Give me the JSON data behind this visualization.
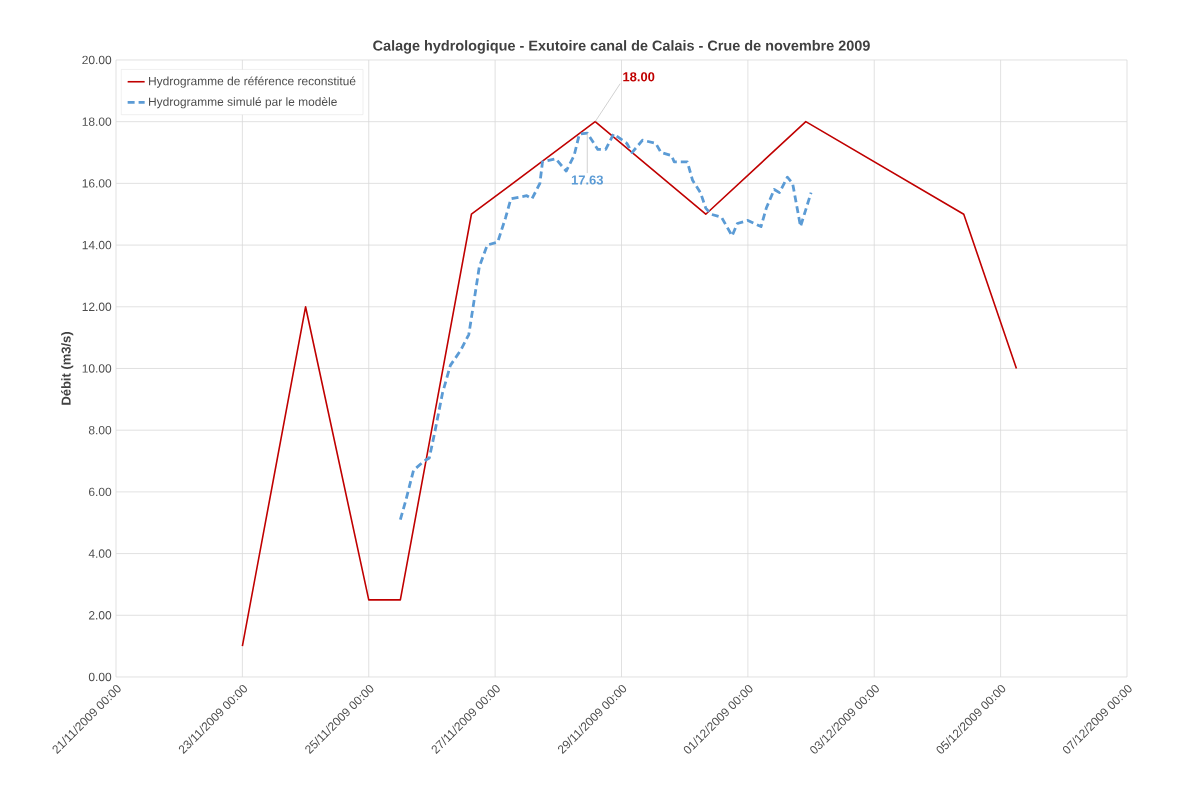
{
  "chart_data": {
    "type": "line",
    "title": "Calage hydrologique - Exutoire canal de Calais - Crue de novembre 2009",
    "ylabel": "Débit (m3/s)",
    "series": [
      {
        "name": "Hydrogramme de référence reconstitué",
        "color": "#c00000",
        "line_style": "solid",
        "x": [
          "2009-11-23T00:00",
          "2009-11-24T00:00",
          "2009-11-25T00:00",
          "2009-11-25T12:00",
          "2009-11-26T15:00",
          "2009-11-28T14:00",
          "2009-11-30T08:00",
          "2009-12-01T22:00",
          "2009-12-04T10:00",
          "2009-12-05T06:00"
        ],
        "values": [
          1.0,
          12.0,
          2.5,
          2.5,
          15.0,
          18.0,
          15.0,
          18.0,
          15.0,
          10.0
        ]
      },
      {
        "name": "Hydrogramme simulé par le modèle",
        "color": "#5b9bd5",
        "line_style": "dashed",
        "x": [
          "2009-11-25T12:00",
          "2009-11-25T14:00",
          "2009-11-25T17:00",
          "2009-11-25T21:00",
          "2009-11-25T23:00",
          "2009-11-26T01:00",
          "2009-11-26T04:00",
          "2009-11-26T07:00",
          "2009-11-26T11:00",
          "2009-11-26T14:00",
          "2009-11-26T16:00",
          "2009-11-26T18:00",
          "2009-11-26T21:00",
          "2009-11-27T01:00",
          "2009-11-27T04:00",
          "2009-11-27T06:00",
          "2009-11-27T12:00",
          "2009-11-27T14:00",
          "2009-11-27T17:00",
          "2009-11-27T18:00",
          "2009-11-27T23:00",
          "2009-11-28T03:00",
          "2009-11-28T06:00",
          "2009-11-28T08:00",
          "2009-11-28T11:00",
          "2009-11-28T15:00",
          "2009-11-28T18:00",
          "2009-11-28T21:00",
          "2009-11-29T02:00",
          "2009-11-29T04:00",
          "2009-11-29T08:00",
          "2009-11-29T13:00",
          "2009-11-29T15:00",
          "2009-11-29T19:00",
          "2009-11-29T20:00",
          "2009-11-30T01:00",
          "2009-11-30T03:00",
          "2009-11-30T06:00",
          "2009-11-30T08:00",
          "2009-11-30T10:00",
          "2009-11-30T14:00",
          "2009-11-30T18:00",
          "2009-11-30T20:00",
          "2009-12-01T00:00",
          "2009-12-01T05:00",
          "2009-12-01T07:00",
          "2009-12-01T10:00",
          "2009-12-01T12:00",
          "2009-12-01T15:00",
          "2009-12-01T17:00",
          "2009-12-01T20:00",
          "2009-12-02T00:00"
        ],
        "values": [
          5.1,
          5.7,
          6.7,
          7.0,
          7.1,
          7.9,
          9.2,
          10.1,
          10.6,
          11.1,
          12.2,
          13.3,
          14.0,
          14.1,
          14.9,
          15.5,
          15.6,
          15.5,
          16.0,
          16.7,
          16.8,
          16.4,
          16.9,
          17.6,
          17.63,
          17.1,
          17.1,
          17.6,
          17.3,
          17.0,
          17.4,
          17.3,
          17.0,
          16.9,
          16.7,
          16.7,
          16.1,
          15.7,
          15.2,
          15.0,
          14.9,
          14.3,
          14.7,
          14.8,
          14.6,
          15.2,
          15.8,
          15.7,
          16.2,
          16.0,
          14.6,
          15.7
        ]
      }
    ],
    "annotations": [
      {
        "text": "18.00",
        "x": "2009-11-28T14:00",
        "y": 18.0
      },
      {
        "text": "17.63",
        "x": "2009-11-28T11:00",
        "y": 17.63
      }
    ],
    "xlim": [
      "2009-11-21T00:00",
      "2009-12-07T00:00"
    ],
    "xticks": [
      {
        "value": "2009-11-21T00:00",
        "label": "21/11/2009 00:00"
      },
      {
        "value": "2009-11-23T00:00",
        "label": "23/11/2009 00:00"
      },
      {
        "value": "2009-11-25T00:00",
        "label": "25/11/2009 00:00"
      },
      {
        "value": "2009-11-27T00:00",
        "label": "27/11/2009 00:00"
      },
      {
        "value": "2009-11-29T00:00",
        "label": "29/11/2009 00:00"
      },
      {
        "value": "2009-12-01T00:00",
        "label": "01/12/2009 00:00"
      },
      {
        "value": "2009-12-03T00:00",
        "label": "03/12/2009 00:00"
      },
      {
        "value": "2009-12-05T00:00",
        "label": "05/12/2009 00:00"
      },
      {
        "value": "2009-12-07T00:00",
        "label": "07/12/2009 00:00"
      }
    ],
    "ylim": [
      0,
      20
    ],
    "yticks": [
      {
        "value": 0,
        "label": "0.00"
      },
      {
        "value": 2,
        "label": "2.00"
      },
      {
        "value": 4,
        "label": "4.00"
      },
      {
        "value": 6,
        "label": "6.00"
      },
      {
        "value": 8,
        "label": "8.00"
      },
      {
        "value": 10,
        "label": "10.00"
      },
      {
        "value": 12,
        "label": "12.00"
      },
      {
        "value": 14,
        "label": "14.00"
      },
      {
        "value": 16,
        "label": "16.00"
      },
      {
        "value": 18,
        "label": "18.00"
      },
      {
        "value": 20,
        "label": "20.00"
      }
    ],
    "grid": true,
    "legend": "top left",
    "marker": "none"
  }
}
